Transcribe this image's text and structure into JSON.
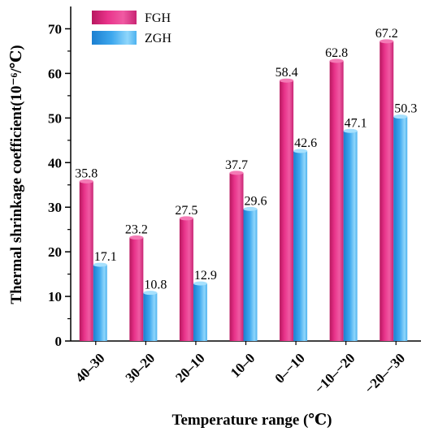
{
  "chart_data": {
    "type": "bar",
    "title": "",
    "xlabel": "Temperature range (℃)",
    "ylabel": "Thermal shrinkage coefficient(10⁻⁶/℃)",
    "ylim": [
      0,
      75
    ],
    "yticks": [
      "0",
      "10",
      "20",
      "30",
      "40",
      "50",
      "60",
      "70"
    ],
    "grid": false,
    "legend_position": "top-left",
    "categories": [
      "40–30",
      "30–20",
      "20–10",
      "10–0",
      "0–−10",
      "−10–−20",
      "−20–−30"
    ],
    "series": [
      {
        "name": "FGH",
        "color": "#e8338a",
        "values": [
          35.8,
          23.2,
          27.5,
          37.7,
          58.4,
          62.8,
          67.2
        ],
        "labels": [
          "35.8",
          "23.2",
          "27.5",
          "37.7",
          "58.4",
          "62.8",
          "67.2"
        ]
      },
      {
        "name": "ZGH",
        "color": "#2f9be6",
        "values": [
          17.1,
          10.8,
          12.9,
          29.6,
          42.6,
          47.1,
          50.3
        ],
        "labels": [
          "17.1",
          "10.8",
          "12.9",
          "29.6",
          "42.6",
          "47.1",
          "50.3"
        ]
      }
    ]
  }
}
